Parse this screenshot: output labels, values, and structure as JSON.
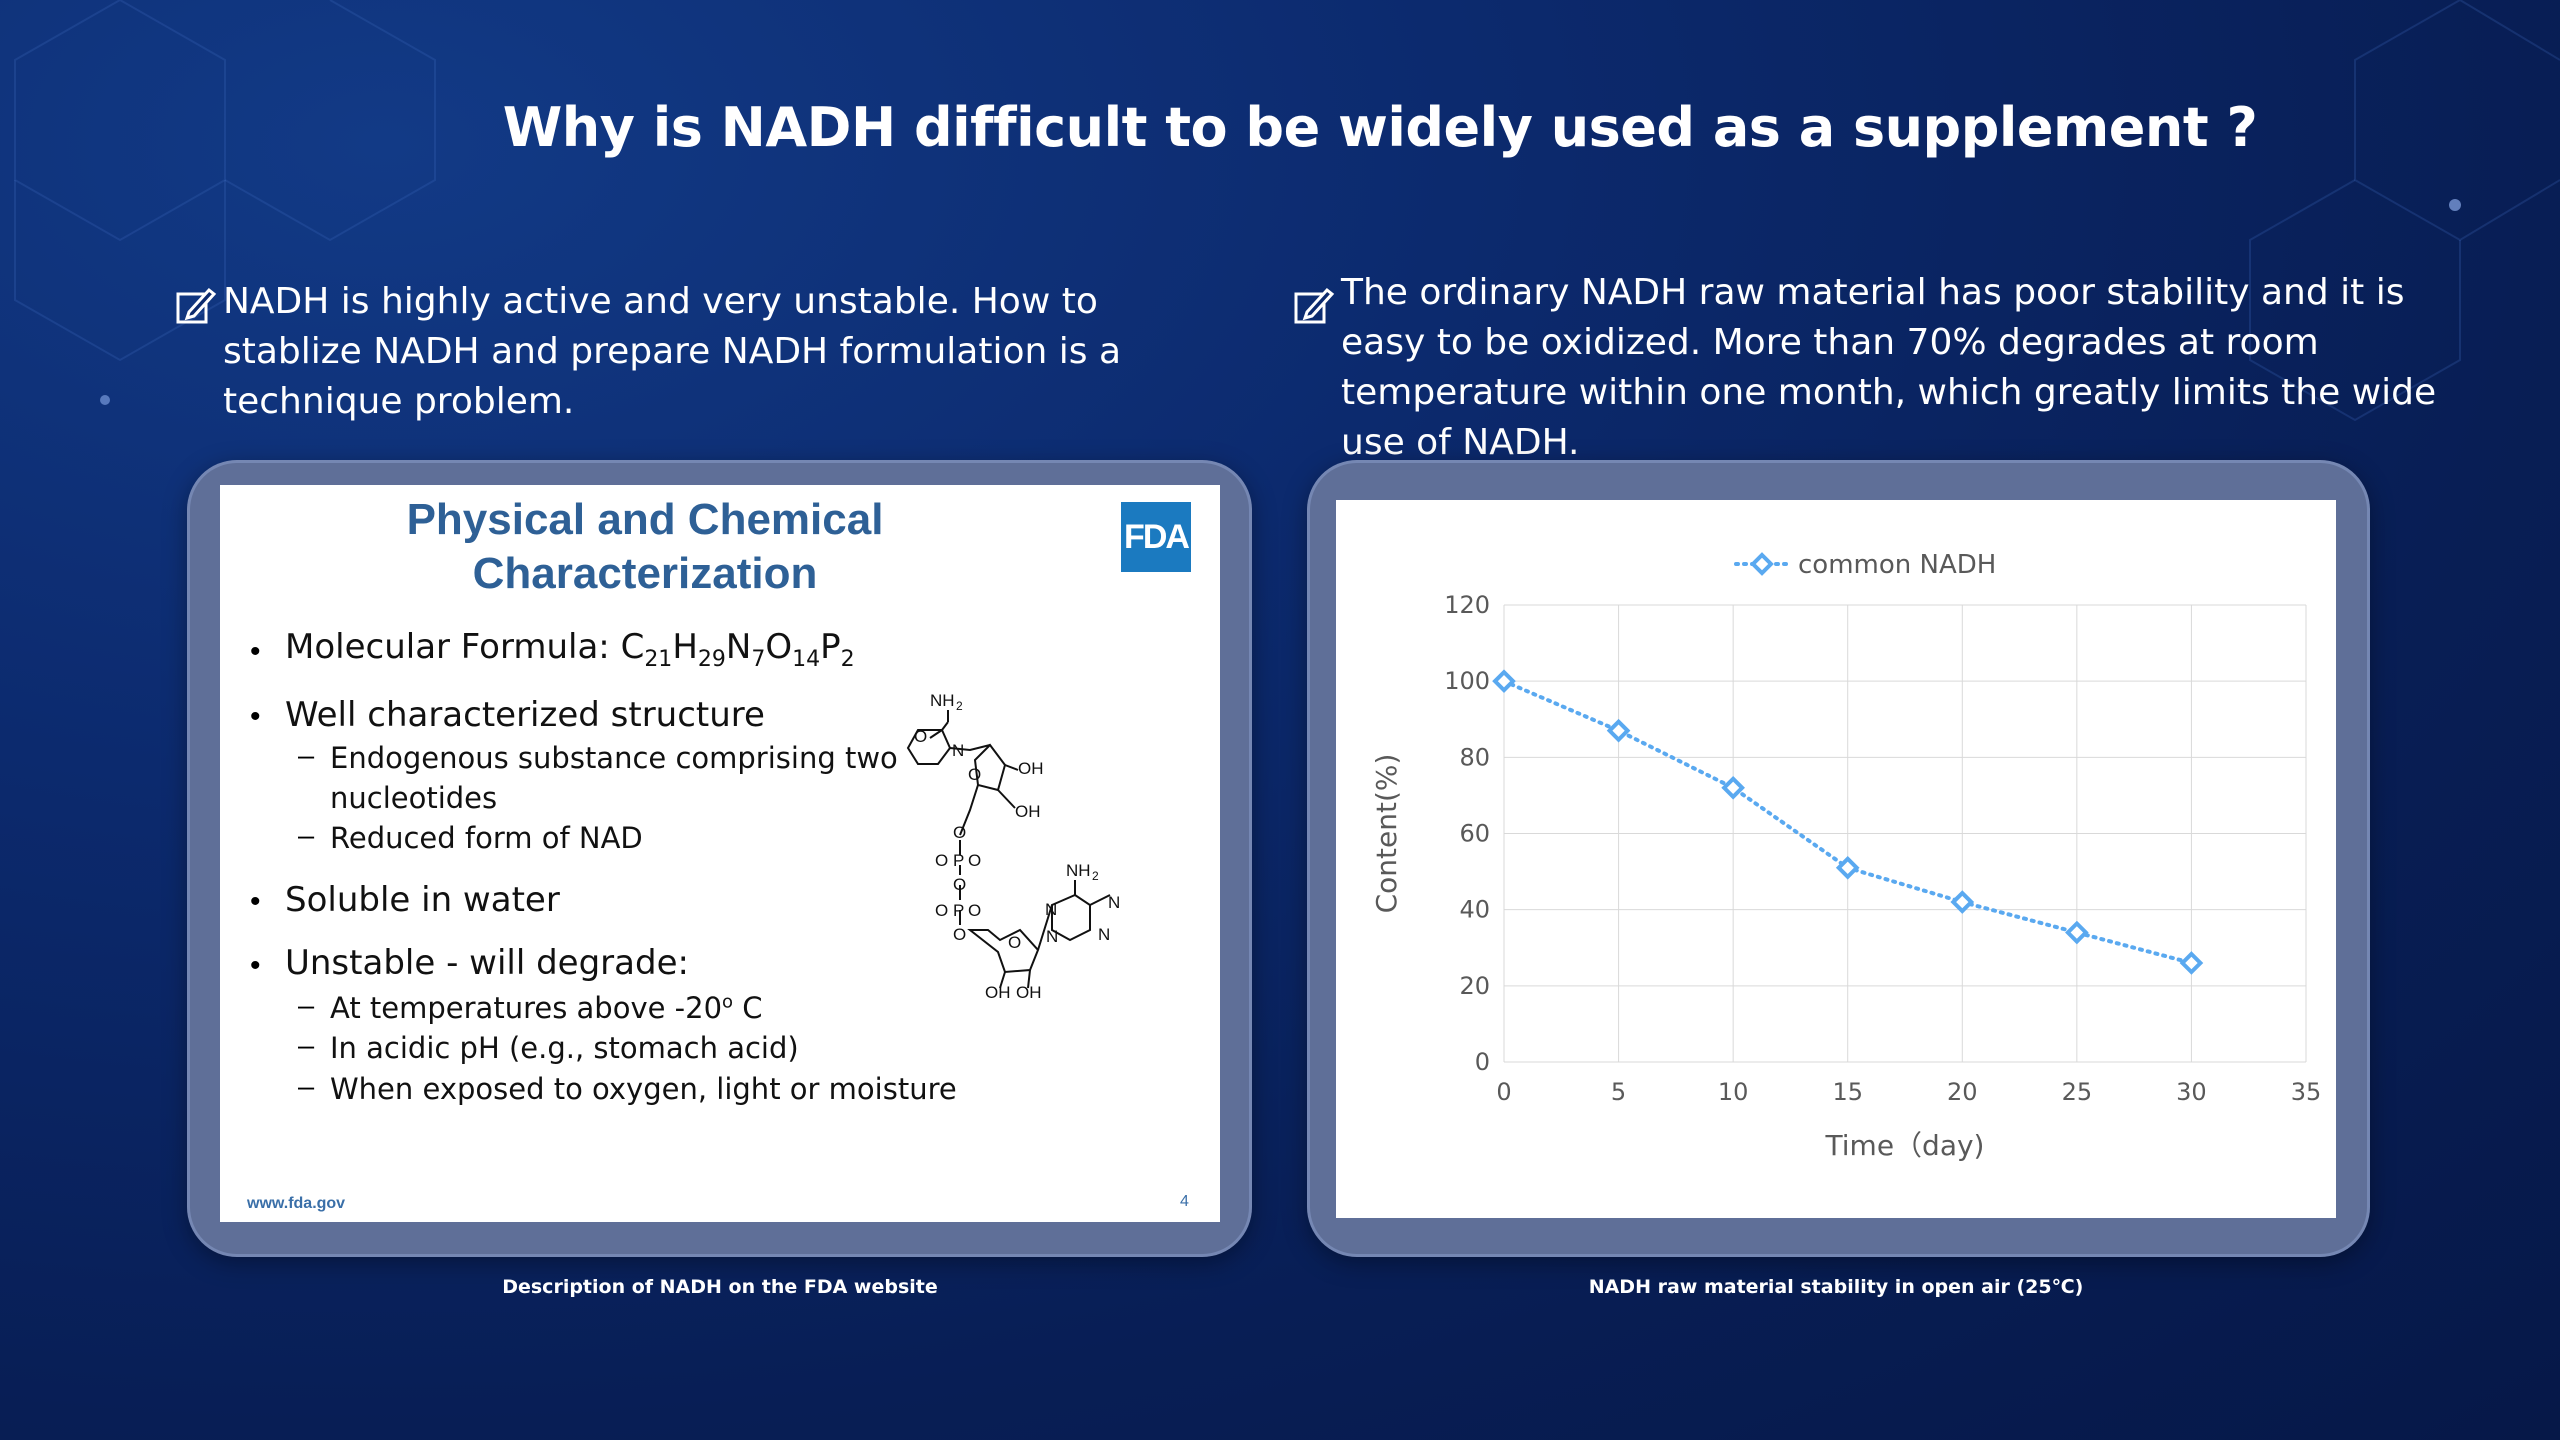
{
  "slide_title": "Why is NADH difficult to be widely used as a supplement ?",
  "bullets": {
    "left": "NADH is highly active and very unstable. How to stablize NADH and prepare NADH formulation is a technique problem.",
    "right": "The ordinary NADH raw material has poor stability and it is easy to be oxidized. More than 70% degrades at room temperature within one month, which greatly limits the wide use of NADH.",
    "icon": "edit-checkbox-icon"
  },
  "fda_slide": {
    "title_line1": "Physical and Chemical",
    "title_line2": "Characterization",
    "logo": "FDA",
    "molecular_formula_label": "Molecular Formula: ",
    "formula": [
      "C",
      "21",
      "H",
      "29",
      "N",
      "7",
      "O",
      "14",
      "P",
      "2"
    ],
    "item_structure": "Well characterized structure",
    "sub_endogenous_1": "Endogenous substance comprising two",
    "sub_endogenous_2": "nucleotides",
    "sub_reduced": "Reduced form of NAD",
    "item_soluble": "Soluble in water",
    "item_unstable": "Unstable - will degrade:",
    "sub_temp": "At temperatures above  -20",
    "sub_temp_sup": "o",
    "sub_temp_unit": " C",
    "sub_ph": "In acidic pH (e.g., stomach acid)",
    "sub_oxygen": "When exposed to oxygen, light or moisture",
    "footer": "www.fda.gov",
    "page": "4",
    "mol_labels": {
      "nh2": "NH",
      "two": "2",
      "o": "O",
      "n": "N",
      "oh": "OH",
      "p": "P",
      "minus": "−"
    }
  },
  "chart_data": {
    "type": "line",
    "x": [
      0,
      5,
      10,
      15,
      20,
      25,
      30
    ],
    "series": [
      {
        "name": "common NADH",
        "values": [
          100,
          87,
          72,
          51,
          42,
          34,
          26
        ],
        "color": "#5aa9f0"
      }
    ],
    "xlim": [
      0,
      35
    ],
    "ylim": [
      0,
      120
    ],
    "xticks": [
      0,
      5,
      10,
      15,
      20,
      25,
      30,
      35
    ],
    "yticks": [
      0,
      20,
      40,
      60,
      80,
      100,
      120
    ],
    "xlabel": "Time（day)",
    "ylabel": "Content(%)",
    "grid": true,
    "legend": "top",
    "marker": "diamond",
    "line_style": "dotted"
  },
  "captions": {
    "left": "Description of NADH on the FDA website",
    "right": "NADH raw material stability in open air (25℃)"
  }
}
